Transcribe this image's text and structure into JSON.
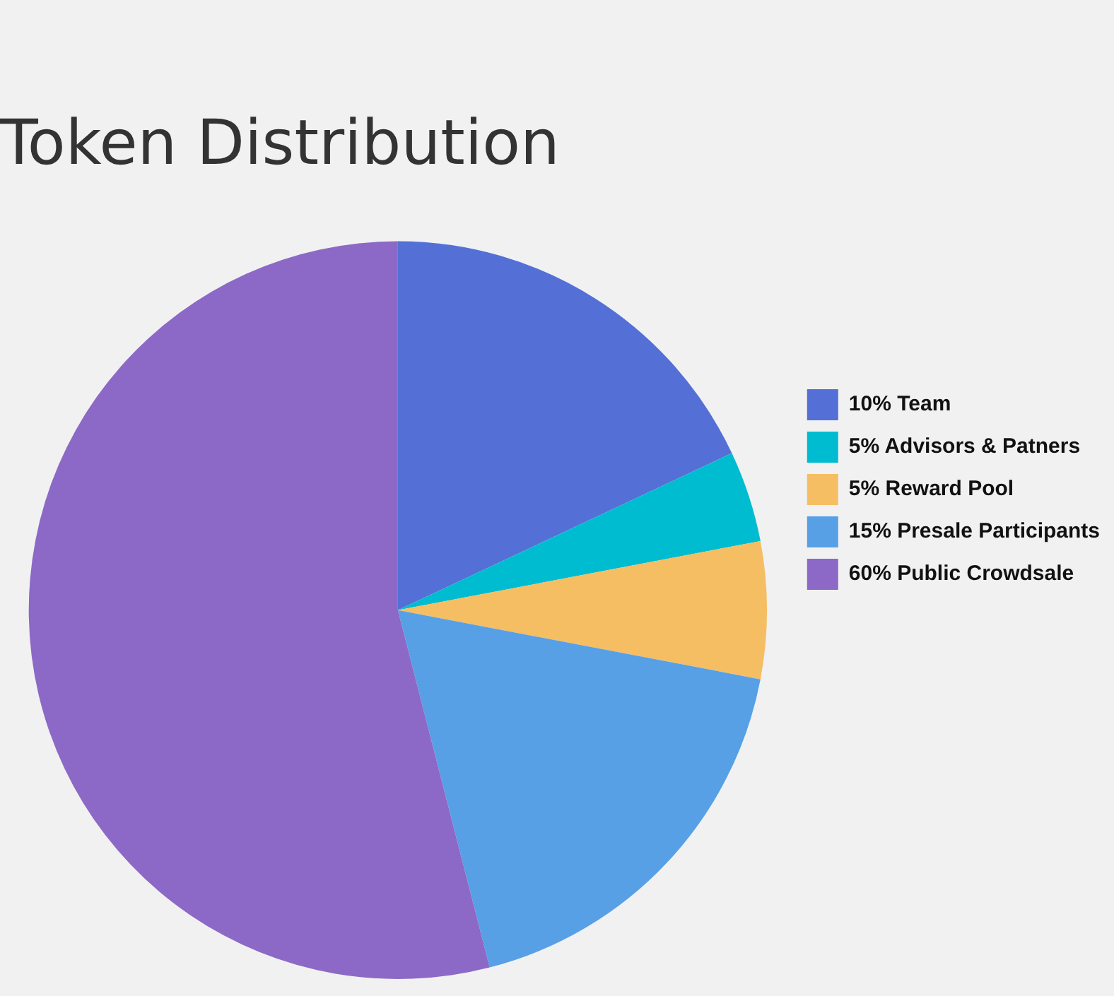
{
  "chart_data": {
    "type": "pie",
    "title": "Token Distribution",
    "categories": [
      "10% Team",
      "5% Advisors & Patners",
      "5% Reward Pool",
      "15% Presale Participants",
      "60% Public Crowdsale"
    ],
    "values": [
      18,
      4,
      6,
      18,
      54
    ],
    "colors": [
      "#5470d6",
      "#00bcd0",
      "#f5be63",
      "#57a0e6",
      "#8c69c6"
    ],
    "legend": "right"
  }
}
